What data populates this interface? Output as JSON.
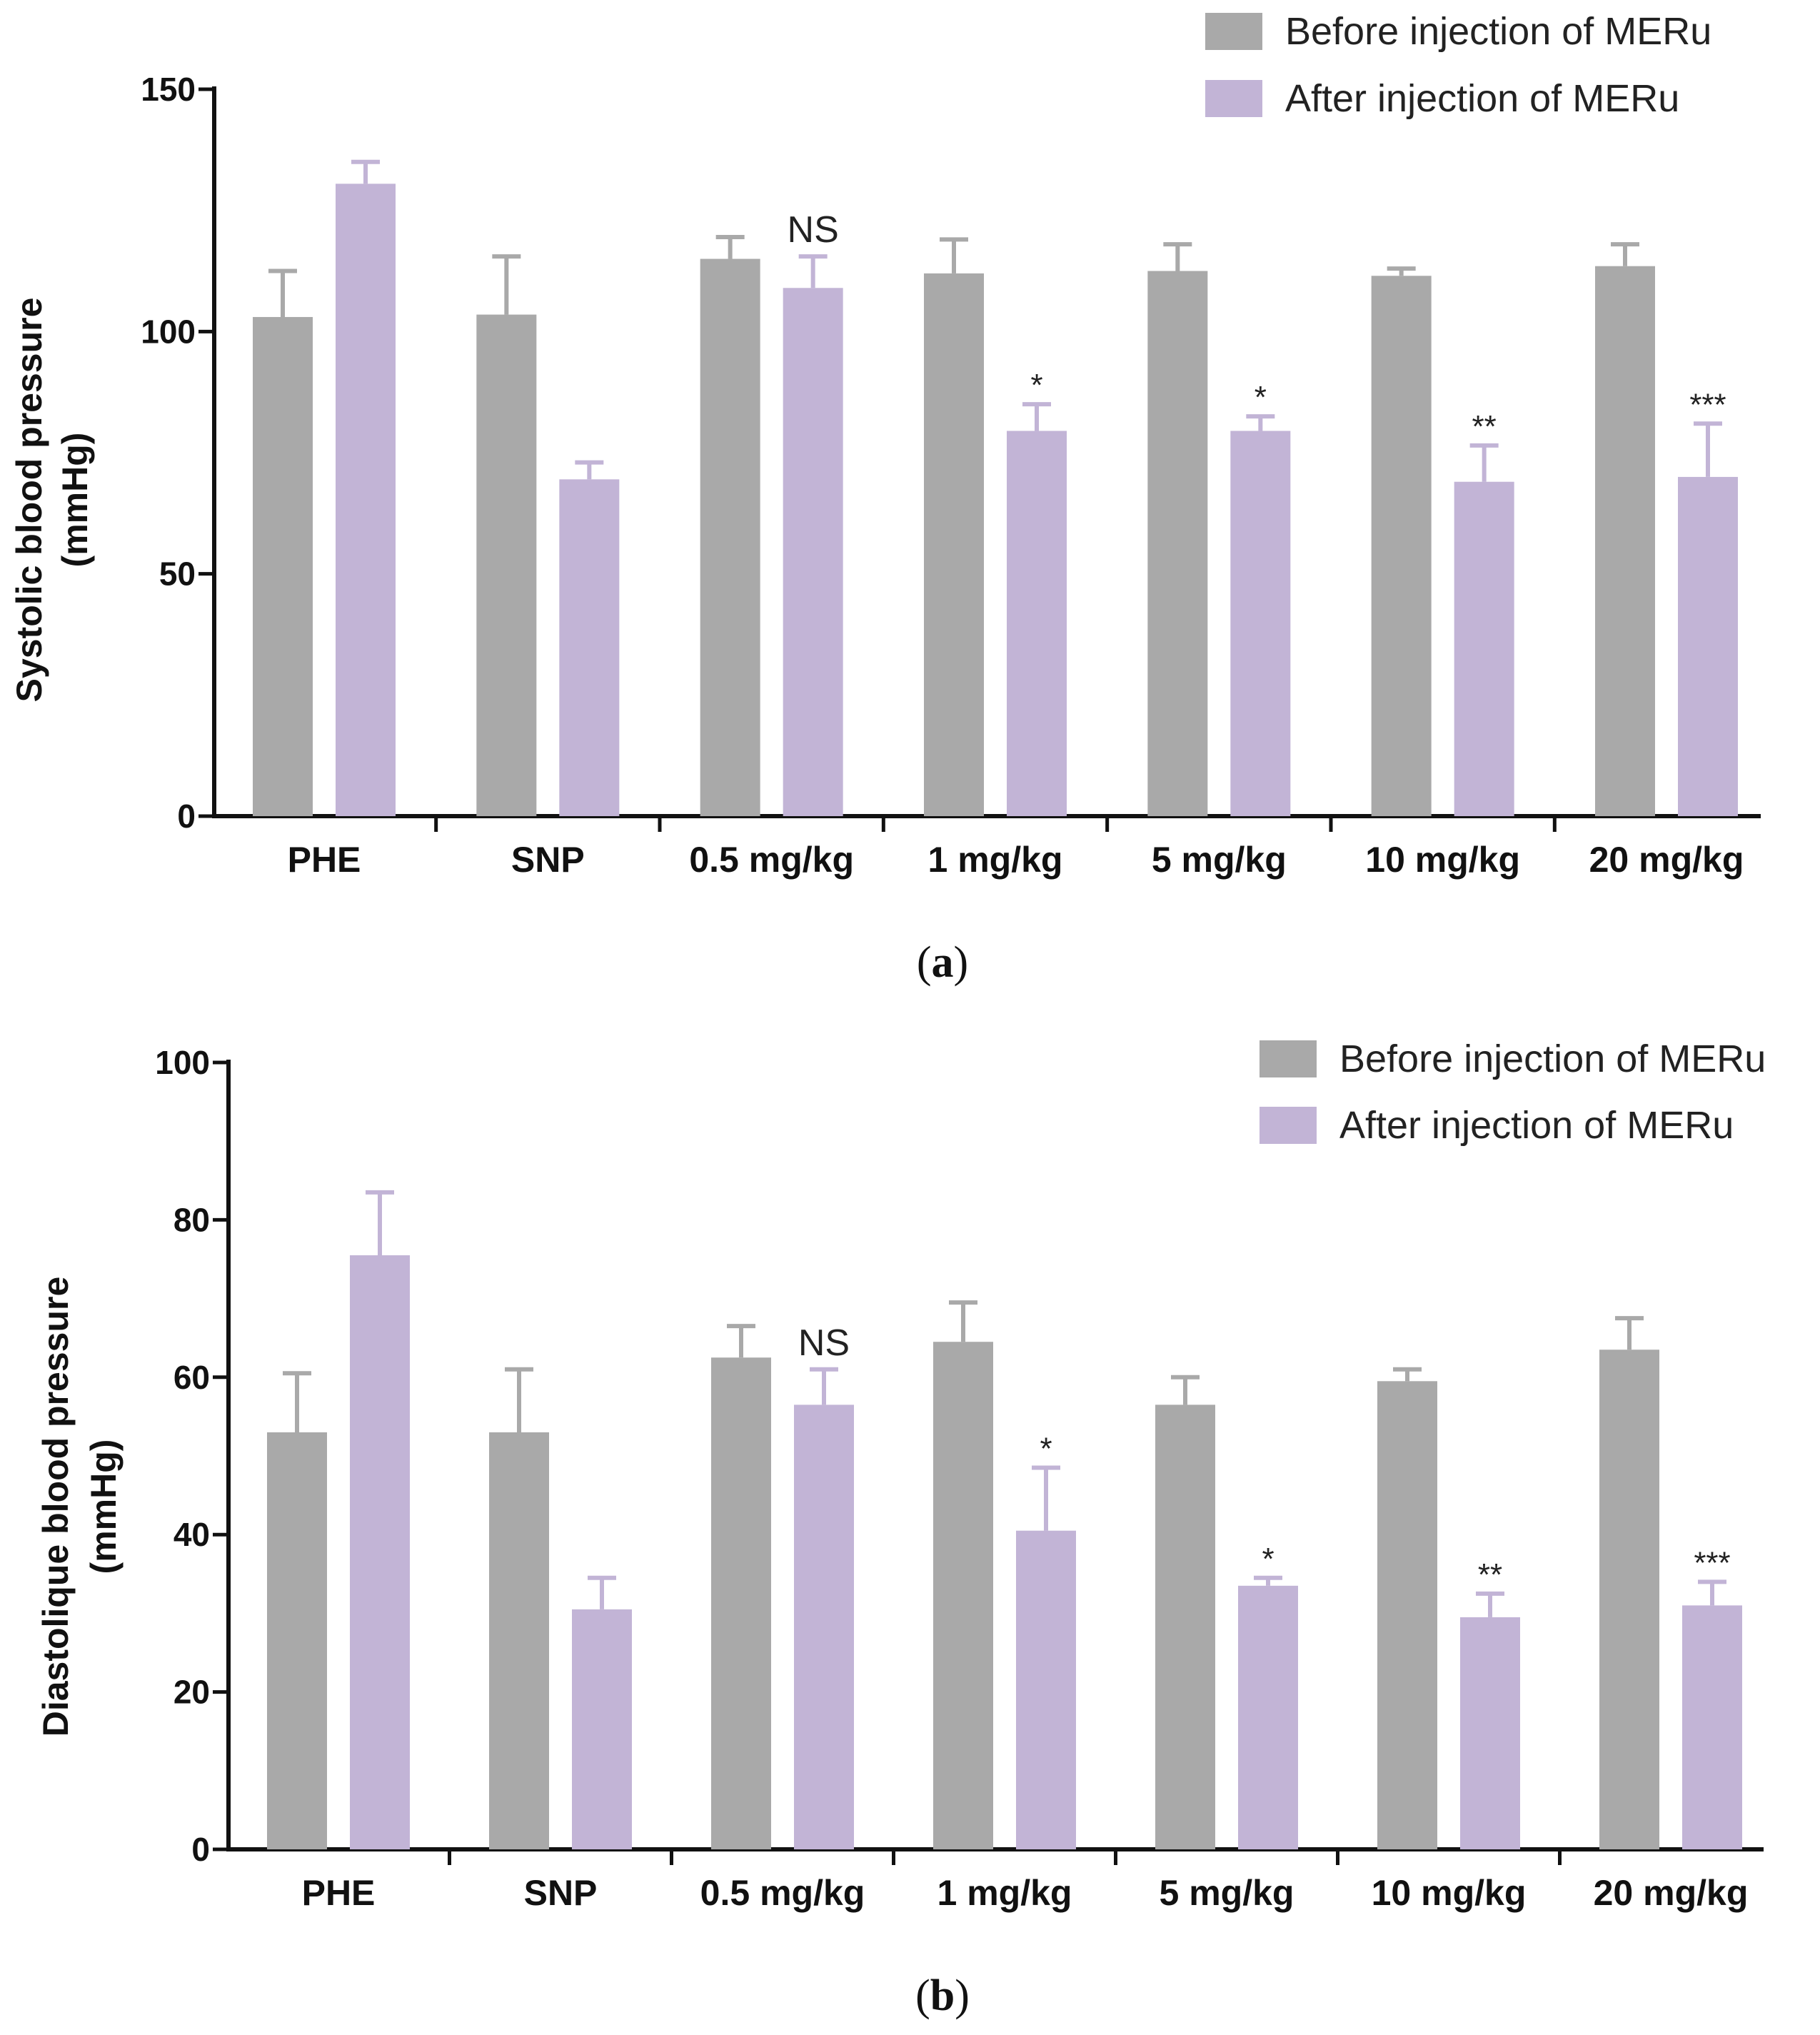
{
  "chart_data": [
    {
      "type": "bar",
      "panel_label": "a",
      "ylabel_line1": "Systolic blood pressure",
      "ylabel_line2": "(mmHg)",
      "ylim": [
        0,
        150
      ],
      "yticks": [
        0,
        50,
        100,
        150
      ],
      "categories": [
        "PHE",
        "SNP",
        "0.5 mg/kg",
        "1 mg/kg",
        "5 mg/kg",
        "10 mg/kg",
        "20 mg/kg"
      ],
      "series": [
        {
          "name": "Before injection of MERu",
          "color": "#a9a9a9",
          "values": [
            103,
            103.5,
            115,
            112,
            112.5,
            111.5,
            113.5
          ],
          "errors": [
            9.5,
            12,
            4.5,
            7,
            5.5,
            1.5,
            4.5
          ]
        },
        {
          "name": "After injection of MERu",
          "color": "#c2b4d6",
          "values": [
            130.5,
            69.5,
            109,
            79.5,
            79.5,
            69,
            70
          ],
          "errors": [
            4.5,
            3.5,
            6.5,
            5.5,
            3,
            7.5,
            11
          ]
        }
      ],
      "annotations": [
        "",
        "",
        "NS",
        "*",
        "*",
        "**",
        "***"
      ],
      "legend_position": "top-right"
    },
    {
      "type": "bar",
      "panel_label": "b",
      "ylabel_line1": "Diastolique blood pressure",
      "ylabel_line2": "(mmHg)",
      "ylim": [
        0,
        100
      ],
      "yticks": [
        0,
        20,
        40,
        60,
        80,
        100
      ],
      "categories": [
        "PHE",
        "SNP",
        "0.5 mg/kg",
        "1 mg/kg",
        "5 mg/kg",
        "10 mg/kg",
        "20 mg/kg"
      ],
      "series": [
        {
          "name": "Before injection of MERu",
          "color": "#a9a9a9",
          "values": [
            53,
            53,
            62.5,
            64.5,
            56.5,
            59.5,
            63.5
          ],
          "errors": [
            7.5,
            8,
            4,
            5,
            3.5,
            1.5,
            4
          ]
        },
        {
          "name": "After injection of MERu",
          "color": "#c2b4d6",
          "values": [
            75.5,
            30.5,
            56.5,
            40.5,
            33.5,
            29.5,
            31
          ],
          "errors": [
            8,
            4,
            4.5,
            8,
            1,
            3,
            3
          ]
        }
      ],
      "annotations": [
        "",
        "",
        "NS",
        "*",
        "*",
        "**",
        "***"
      ],
      "legend_position": "top-right"
    }
  ]
}
